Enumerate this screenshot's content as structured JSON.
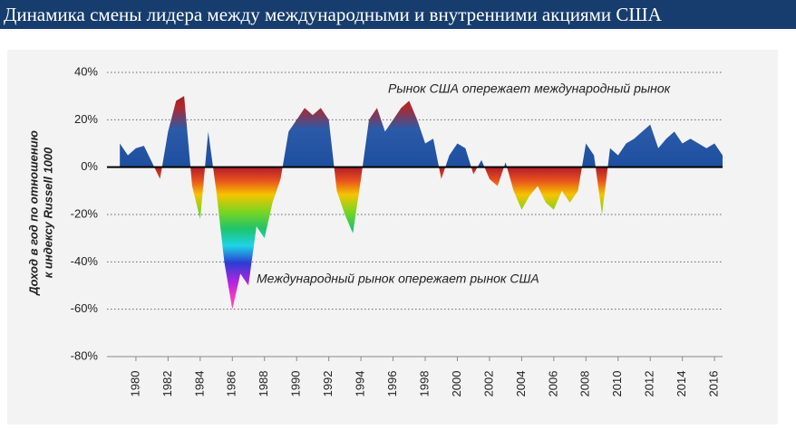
{
  "chart_data": {
    "type": "area",
    "title": "Динамика смены лидера между международными и внутренними акциями США",
    "y_label": [
      "Доход в год по отношению",
      "к индексу Russell 1000"
    ],
    "annotations": [
      "Рынок США опережает международный рынок",
      "Международный рынок опережает рынок США"
    ],
    "x": [
      1979.0,
      1979.5,
      1980.0,
      1980.5,
      1981.0,
      1981.5,
      1982.0,
      1982.5,
      1983.0,
      1983.5,
      1984.0,
      1984.5,
      1985.0,
      1985.5,
      1986.0,
      1986.5,
      1987.0,
      1987.5,
      1988.0,
      1988.5,
      1989.0,
      1989.5,
      1990.0,
      1990.5,
      1991.0,
      1991.5,
      1992.0,
      1992.5,
      1993.0,
      1993.5,
      1994.0,
      1994.5,
      1995.0,
      1995.5,
      1996.0,
      1996.5,
      1997.0,
      1997.5,
      1998.0,
      1998.5,
      1999.0,
      1999.5,
      2000.0,
      2000.5,
      2001.0,
      2001.5,
      2002.0,
      2002.5,
      2003.0,
      2003.5,
      2004.0,
      2004.5,
      2005.0,
      2005.5,
      2006.0,
      2006.5,
      2007.0,
      2007.5,
      2008.0,
      2008.5,
      2009.0,
      2009.5,
      2010.0,
      2010.5,
      2011.0,
      2011.5,
      2012.0,
      2012.5,
      2013.0,
      2013.5,
      2014.0,
      2014.5,
      2015.0,
      2015.5,
      2016.0,
      2016.5
    ],
    "values": [
      10,
      5,
      8,
      9,
      2,
      -5,
      15,
      28,
      30,
      -8,
      -22,
      15,
      -10,
      -40,
      -60,
      -45,
      -50,
      -25,
      -30,
      -15,
      -5,
      15,
      20,
      25,
      22,
      25,
      20,
      -10,
      -20,
      -28,
      -5,
      20,
      25,
      15,
      20,
      25,
      28,
      20,
      10,
      12,
      -5,
      5,
      10,
      8,
      -3,
      3,
      -5,
      -8,
      2,
      -10,
      -18,
      -12,
      -8,
      -15,
      -18,
      -10,
      -15,
      -10,
      10,
      5,
      -20,
      8,
      5,
      10,
      12,
      15,
      18,
      8,
      12,
      15,
      10,
      12,
      10,
      8,
      10,
      5
    ],
    "xlim": [
      1978.2,
      2016.5
    ],
    "xticks": [
      1980,
      1982,
      1984,
      1986,
      1988,
      1990,
      1992,
      1994,
      1996,
      1998,
      2000,
      2002,
      2004,
      2006,
      2008,
      2010,
      2012,
      2014,
      2016
    ],
    "ylim": [
      -80,
      40
    ],
    "yticks": [
      {
        "value": 40,
        "label": "40%"
      },
      {
        "value": 20,
        "label": "20%"
      },
      {
        "value": 0,
        "label": "0%"
      },
      {
        "value": -20,
        "label": "-20%"
      },
      {
        "value": -40,
        "label": "-40%"
      },
      {
        "value": -60,
        "label": "-60%"
      },
      {
        "value": -80,
        "label": "-80%"
      }
    ],
    "grid": true
  }
}
